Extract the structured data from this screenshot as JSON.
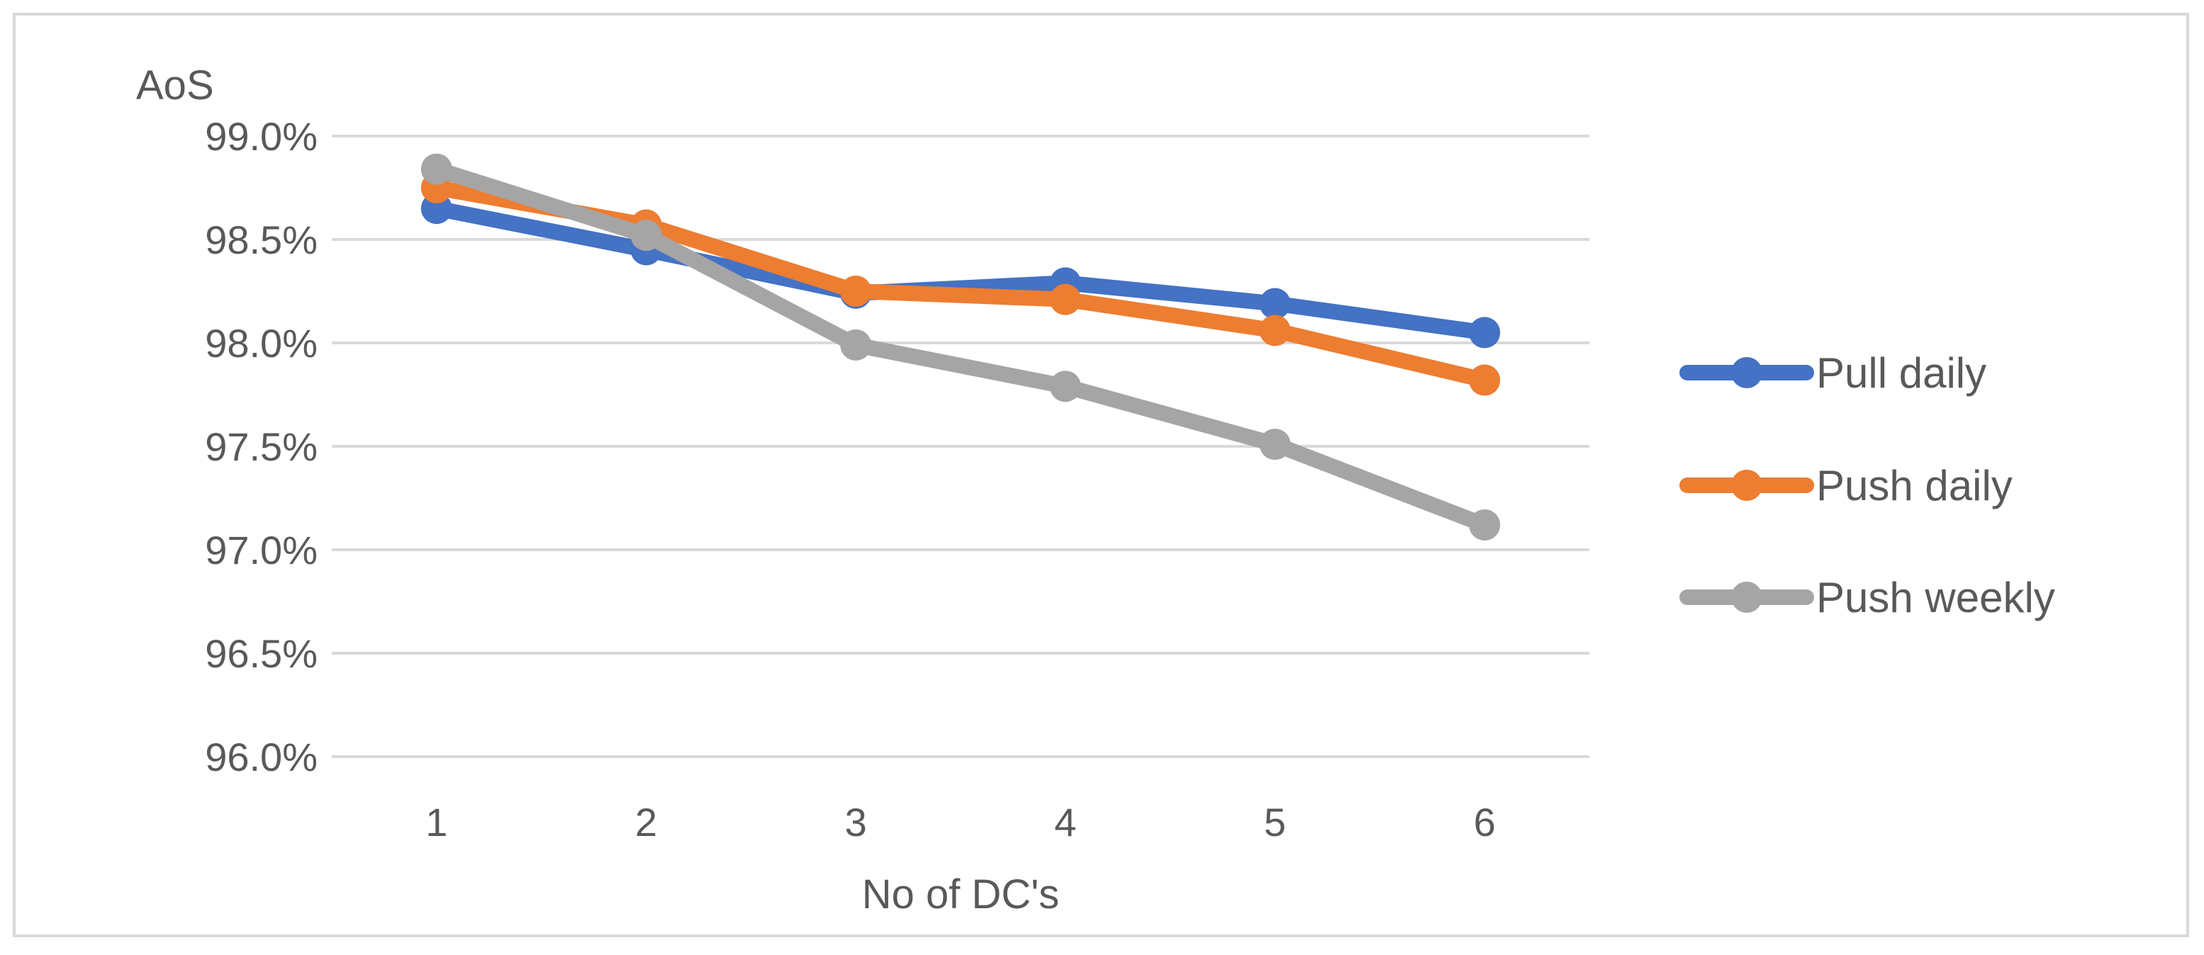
{
  "chart_data": {
    "type": "line",
    "title": "",
    "ylabel": "AoS",
    "xlabel": "No of DC's",
    "categories": [
      "1",
      "2",
      "3",
      "4",
      "5",
      "6"
    ],
    "ylim": [
      96.0,
      99.0
    ],
    "yticks": [
      96.0,
      96.5,
      97.0,
      97.5,
      98.0,
      98.5,
      99.0
    ],
    "ytick_labels": [
      "96.0%",
      "96.5%",
      "97.0%",
      "97.5%",
      "98.0%",
      "98.5%",
      "99.0%"
    ],
    "grid": true,
    "legend_position": "right",
    "series": [
      {
        "name": "Pull daily",
        "color": "#4472c4",
        "values": [
          98.65,
          98.45,
          98.24,
          98.29,
          98.19,
          98.05
        ]
      },
      {
        "name": "Push daily",
        "color": "#ed7d31",
        "values": [
          98.75,
          98.57,
          98.25,
          98.21,
          98.06,
          97.82
        ]
      },
      {
        "name": "Push weekly",
        "color": "#a5a5a5",
        "values": [
          98.84,
          98.52,
          97.99,
          97.79,
          97.51,
          97.12
        ]
      }
    ]
  }
}
